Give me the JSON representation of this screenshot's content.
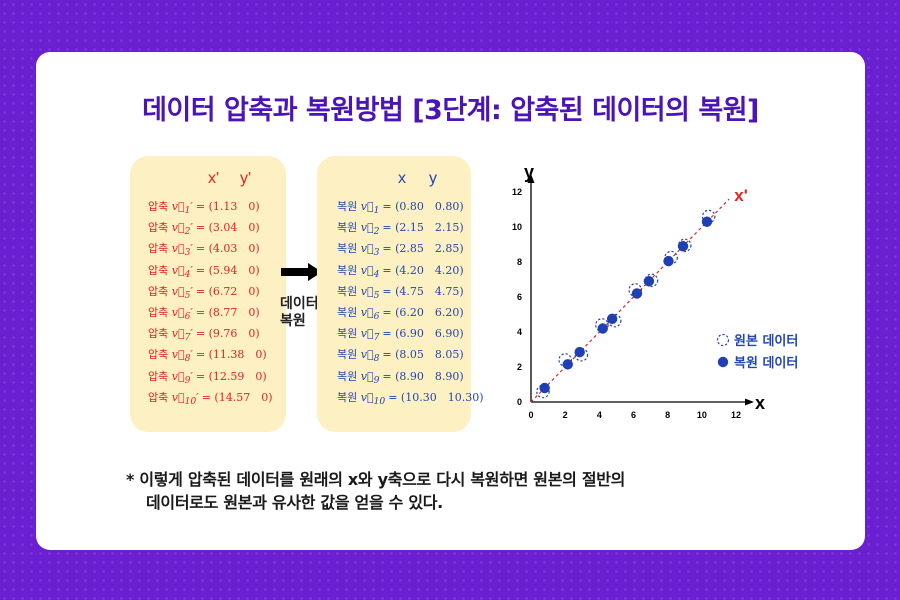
{
  "title": "데이터 압축과 복원방법 [3단계: 압축된 데이터의 복원]",
  "compressed": {
    "header_x": "x'",
    "header_y": "y'",
    "row_label": "압축",
    "rows": [
      {
        "sub": "1",
        "x": "1.13",
        "y": "0"
      },
      {
        "sub": "2",
        "x": "3.04",
        "y": "0"
      },
      {
        "sub": "3",
        "x": "4.03",
        "y": "0"
      },
      {
        "sub": "4",
        "x": "5.94",
        "y": "0"
      },
      {
        "sub": "5",
        "x": "6.72",
        "y": "0"
      },
      {
        "sub": "6",
        "x": "8.77",
        "y": "0"
      },
      {
        "sub": "7",
        "x": "9.76",
        "y": "0"
      },
      {
        "sub": "8",
        "x": "11.38",
        "y": "0"
      },
      {
        "sub": "9",
        "x": "12.59",
        "y": "0"
      },
      {
        "sub": "10",
        "x": "14.57",
        "y": "0"
      }
    ]
  },
  "restored": {
    "header_x": "x",
    "header_y": "y",
    "row_label": "복원",
    "rows": [
      {
        "sub": "1",
        "x": "0.80",
        "y": "0.80"
      },
      {
        "sub": "2",
        "x": "2.15",
        "y": "2.15"
      },
      {
        "sub": "3",
        "x": "2.85",
        "y": "2.85"
      },
      {
        "sub": "4",
        "x": "4.20",
        "y": "4.20"
      },
      {
        "sub": "5",
        "x": "4.75",
        "y": "4.75"
      },
      {
        "sub": "6",
        "x": "6.20",
        "y": "6.20"
      },
      {
        "sub": "7",
        "x": "6.90",
        "y": "6.90"
      },
      {
        "sub": "8",
        "x": "8.05",
        "y": "8.05"
      },
      {
        "sub": "9",
        "x": "8.90",
        "y": "8.90"
      },
      {
        "sub": "10",
        "x": "10.30",
        "y": "10.30"
      }
    ]
  },
  "transition_label_1": "데이터",
  "transition_label_2": "복원",
  "colors": {
    "title": "#4b14b8",
    "compressed": "#e02424",
    "restored": "#2346b0",
    "panel": "#fdf0c2",
    "background": "#6a1fd0"
  },
  "chart_data": {
    "type": "scatter",
    "xlabel": "x",
    "ylabel": "y",
    "line_label": "x'",
    "xlim": [
      0,
      12
    ],
    "ylim": [
      0,
      12
    ],
    "xticks": [
      0,
      2,
      4,
      6,
      8,
      10,
      12
    ],
    "yticks": [
      0,
      2,
      4,
      6,
      8,
      10,
      12
    ],
    "legend_position": "right",
    "series": [
      {
        "name": "원본 데이터",
        "style": "dashed-circle",
        "x": [
          0.7,
          2.0,
          2.95,
          4.15,
          4.9,
          6.1,
          7.05,
          8.2,
          9.0,
          10.4
        ],
        "y": [
          0.6,
          2.4,
          2.7,
          4.4,
          4.65,
          6.4,
          6.95,
          8.25,
          8.95,
          10.6
        ]
      },
      {
        "name": "복원 데이터",
        "style": "filled-circle",
        "x": [
          0.8,
          2.15,
          2.85,
          4.2,
          4.75,
          6.2,
          6.9,
          8.05,
          8.9,
          10.3
        ],
        "y": [
          0.8,
          2.15,
          2.85,
          4.2,
          4.75,
          6.2,
          6.9,
          8.05,
          8.9,
          10.3
        ]
      }
    ]
  },
  "note_line1": "* 이렇게 압축된 데이터를 원래의 x와 y축으로 다시 복원하면 원본의 절반의",
  "note_line2": "데이터로도 원본과 유사한 값을 얻을 수 있다."
}
